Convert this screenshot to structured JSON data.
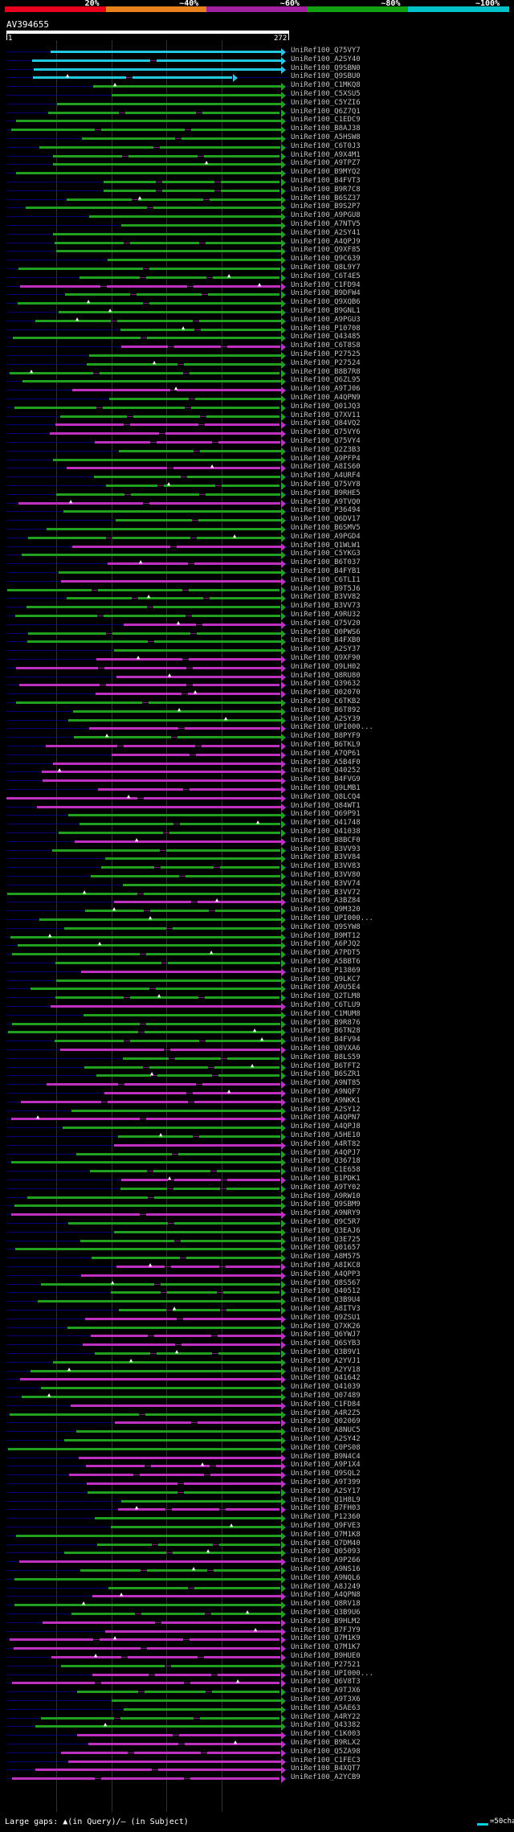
{
  "scale": {
    "labels": [
      "20%",
      "~40%",
      "~60%",
      "~80%",
      "~100%"
    ],
    "colors": [
      "#e8001c",
      "#e8801c",
      "#a020a0",
      "#10a010",
      "#00c0c8"
    ]
  },
  "query": {
    "name": "AV394655",
    "start": "1",
    "end": "272"
  },
  "colors": {
    "cyan": "#22c8e0",
    "green": "#1fa01f",
    "magenta": "#c030c0",
    "gap": "#7a1a7a",
    "guide": "#00007a"
  },
  "hits": [
    {
      "name": "UniRef100_Q75VY7",
      "color": "cyan"
    },
    {
      "name": "UniRef100_A2SY40",
      "color": "cyan"
    },
    {
      "name": "UniRef100_Q9SBN0",
      "color": "cyan"
    },
    {
      "name": "UniRef100_Q9SBU0",
      "color": "cyan"
    },
    {
      "name": "UniRef100_C1MKQ8",
      "color": "green"
    },
    {
      "name": "UniRef100_C5XSU5",
      "color": "green"
    },
    {
      "name": "UniRef100_C5YZI6",
      "color": "green"
    },
    {
      "name": "UniRef100_Q6Z7Q1",
      "color": "green"
    },
    {
      "name": "UniRef100_C1EDC9",
      "color": "green"
    },
    {
      "name": "UniRef100_B8AJ38",
      "color": "green"
    },
    {
      "name": "UniRef100_A5HSW8",
      "color": "green"
    },
    {
      "name": "UniRef100_C6T0J3",
      "color": "green"
    },
    {
      "name": "UniRef100_A9X4M1",
      "color": "green"
    },
    {
      "name": "UniRef100_A9TPZ7",
      "color": "green"
    },
    {
      "name": "UniRef100_B9MYQ2",
      "color": "green"
    },
    {
      "name": "UniRef100_B4FVT3",
      "color": "green"
    },
    {
      "name": "UniRef100_B9R7C8",
      "color": "green"
    },
    {
      "name": "UniRef100_B6SZ37",
      "color": "green"
    },
    {
      "name": "UniRef100_B9S2P7",
      "color": "green"
    },
    {
      "name": "UniRef100_A9PGU8",
      "color": "green"
    },
    {
      "name": "UniRef100_A7NTV5",
      "color": "green"
    },
    {
      "name": "UniRef100_A2SY41",
      "color": "green"
    },
    {
      "name": "UniRef100_A4QPJ9",
      "color": "green"
    },
    {
      "name": "UniRef100_Q9XF85",
      "color": "green"
    },
    {
      "name": "UniRef100_Q9C639",
      "color": "green"
    },
    {
      "name": "UniRef100_Q8L9Y7",
      "color": "green"
    },
    {
      "name": "UniRef100_C6T4E5",
      "color": "green"
    },
    {
      "name": "UniRef100_C1FD94",
      "color": "magenta"
    },
    {
      "name": "UniRef100_B9DFW4",
      "color": "green"
    },
    {
      "name": "UniRef100_Q9XQB6",
      "color": "green"
    },
    {
      "name": "UniRef100_B9GNL1",
      "color": "green"
    },
    {
      "name": "UniRef100_A9PGU3",
      "color": "green"
    },
    {
      "name": "UniRef100_P10708",
      "color": "green"
    },
    {
      "name": "UniRef100_Q43485",
      "color": "green"
    },
    {
      "name": "UniRef100_C6T8S8",
      "color": "magenta"
    },
    {
      "name": "UniRef100_P27525",
      "color": "green"
    },
    {
      "name": "UniRef100_P27524",
      "color": "green"
    },
    {
      "name": "UniRef100_B8B7R8",
      "color": "green"
    },
    {
      "name": "UniRef100_Q6ZL95",
      "color": "green"
    },
    {
      "name": "UniRef100_A9TJ06",
      "color": "magenta"
    },
    {
      "name": "UniRef100_A4QPN9",
      "color": "green"
    },
    {
      "name": "UniRef100_Q01JQ3",
      "color": "green"
    },
    {
      "name": "UniRef100_Q7XV11",
      "color": "green"
    },
    {
      "name": "UniRef100_Q84VQ2",
      "color": "magenta"
    },
    {
      "name": "UniRef100_Q75VY6",
      "color": "magenta"
    },
    {
      "name": "UniRef100_Q75VY4",
      "color": "magenta"
    },
    {
      "name": "UniRef100_Q2Z3B3",
      "color": "green"
    },
    {
      "name": "UniRef100_A9PFP4",
      "color": "green"
    },
    {
      "name": "UniRef100_A8IS60",
      "color": "magenta"
    },
    {
      "name": "UniRef100_A4URF4",
      "color": "green"
    },
    {
      "name": "UniRef100_Q75VY8",
      "color": "green"
    },
    {
      "name": "UniRef100_B9RHE5",
      "color": "green"
    },
    {
      "name": "UniRef100_A9TVQ0",
      "color": "magenta"
    },
    {
      "name": "UniRef100_P36494",
      "color": "green"
    },
    {
      "name": "UniRef100_Q6DV17",
      "color": "green"
    },
    {
      "name": "UniRef100_B6SMV5",
      "color": "green"
    },
    {
      "name": "UniRef100_A9PGD4",
      "color": "green"
    },
    {
      "name": "UniRef100_Q1WLW1",
      "color": "magenta"
    },
    {
      "name": "UniRef100_C5YKG3",
      "color": "green"
    },
    {
      "name": "UniRef100_B6T037",
      "color": "magenta"
    },
    {
      "name": "UniRef100_B4FYB1",
      "color": "green"
    },
    {
      "name": "UniRef100_C6TLI1",
      "color": "magenta"
    },
    {
      "name": "UniRef100_B9T5J6",
      "color": "green"
    },
    {
      "name": "UniRef100_B3VV82",
      "color": "green"
    },
    {
      "name": "UniRef100_B3VV73",
      "color": "green"
    },
    {
      "name": "UniRef100_A9RU32",
      "color": "green"
    },
    {
      "name": "UniRef100_Q75V20",
      "color": "magenta"
    },
    {
      "name": "UniRef100_Q0PWS6",
      "color": "green"
    },
    {
      "name": "UniRef100_B4FXB0",
      "color": "green"
    },
    {
      "name": "UniRef100_A2SY37",
      "color": "green"
    },
    {
      "name": "UniRef100_Q9XF90",
      "color": "magenta"
    },
    {
      "name": "UniRef100_Q9LH02",
      "color": "magenta"
    },
    {
      "name": "UniRef100_Q8RU80",
      "color": "magenta"
    },
    {
      "name": "UniRef100_Q39632",
      "color": "magenta"
    },
    {
      "name": "UniRef100_Q02070",
      "color": "magenta"
    },
    {
      "name": "UniRef100_C6TKB2",
      "color": "green"
    },
    {
      "name": "UniRef100_B6T892",
      "color": "green"
    },
    {
      "name": "UniRef100_A2SY39",
      "color": "green"
    },
    {
      "name": "UniRef100_UPI000...",
      "color": "magenta"
    },
    {
      "name": "UniRef100_B8PYF9",
      "color": "green"
    },
    {
      "name": "UniRef100_B6TKL9",
      "color": "magenta"
    },
    {
      "name": "UniRef100_A7QP61",
      "color": "magenta"
    },
    {
      "name": "UniRef100_A5B4F0",
      "color": "magenta"
    },
    {
      "name": "UniRef100_Q40252",
      "color": "magenta"
    },
    {
      "name": "UniRef100_B4FVG9",
      "color": "magenta"
    },
    {
      "name": "UniRef100_Q9LMB1",
      "color": "magenta"
    },
    {
      "name": "UniRef100_Q8LCQ4",
      "color": "magenta"
    },
    {
      "name": "UniRef100_Q84WT1",
      "color": "magenta"
    },
    {
      "name": "UniRef100_Q69P91",
      "color": "green"
    },
    {
      "name": "UniRef100_Q41748",
      "color": "green"
    },
    {
      "name": "UniRef100_Q41038",
      "color": "green"
    },
    {
      "name": "UniRef100_B8BCF0",
      "color": "magenta"
    },
    {
      "name": "UniRef100_B3VV93",
      "color": "green"
    },
    {
      "name": "UniRef100_B3VV84",
      "color": "green"
    },
    {
      "name": "UniRef100_B3VV83",
      "color": "green"
    },
    {
      "name": "UniRef100_B3VV80",
      "color": "green"
    },
    {
      "name": "UniRef100_B3VV74",
      "color": "green"
    },
    {
      "name": "UniRef100_B3VV72",
      "color": "green"
    },
    {
      "name": "UniRef100_A3BZ84",
      "color": "magenta"
    },
    {
      "name": "UniRef100_Q9M320",
      "color": "green"
    },
    {
      "name": "UniRef100_UPI000...",
      "color": "green"
    },
    {
      "name": "UniRef100_Q9SYW8",
      "color": "green"
    },
    {
      "name": "UniRef100_B9MT12",
      "color": "green"
    },
    {
      "name": "UniRef100_A6PJQ2",
      "color": "green"
    },
    {
      "name": "UniRef100_A7PDT5",
      "color": "green"
    },
    {
      "name": "UniRef100_A5BBT6",
      "color": "green"
    },
    {
      "name": "UniRef100_P13869",
      "color": "magenta"
    },
    {
      "name": "UniRef100_Q9LKC7",
      "color": "green"
    },
    {
      "name": "UniRef100_A9U5E4",
      "color": "green"
    },
    {
      "name": "UniRef100_Q2TLM8",
      "color": "green"
    },
    {
      "name": "UniRef100_C6TLU9",
      "color": "magenta"
    },
    {
      "name": "UniRef100_C1MUM8",
      "color": "green"
    },
    {
      "name": "UniRef100_B9R876",
      "color": "green"
    },
    {
      "name": "UniRef100_B6TN28",
      "color": "green"
    },
    {
      "name": "UniRef100_B4FV94",
      "color": "green"
    },
    {
      "name": "UniRef100_Q8VXA6",
      "color": "magenta"
    },
    {
      "name": "UniRef100_B8LS59",
      "color": "green"
    },
    {
      "name": "UniRef100_B6TFT2",
      "color": "green"
    },
    {
      "name": "UniRef100_B6SZR1",
      "color": "green"
    },
    {
      "name": "UniRef100_A9NT85",
      "color": "magenta"
    },
    {
      "name": "UniRef100_A9NQF7",
      "color": "magenta"
    },
    {
      "name": "UniRef100_A9NKK1",
      "color": "magenta"
    },
    {
      "name": "UniRef100_A2SY12",
      "color": "green"
    },
    {
      "name": "UniRef100_A4QPN7",
      "color": "magenta"
    },
    {
      "name": "UniRef100_A4QPJ8",
      "color": "green"
    },
    {
      "name": "UniRef100_A5HE10",
      "color": "green"
    },
    {
      "name": "UniRef100_A4RT82",
      "color": "magenta"
    },
    {
      "name": "UniRef100_A4QPJ7",
      "color": "green"
    },
    {
      "name": "UniRef100_Q36718",
      "color": "green"
    },
    {
      "name": "UniRef100_C1E658",
      "color": "green"
    },
    {
      "name": "UniRef100_B1PDK1",
      "color": "magenta"
    },
    {
      "name": "UniRef100_A9TY02",
      "color": "green"
    },
    {
      "name": "UniRef100_A9RW10",
      "color": "green"
    },
    {
      "name": "UniRef100_Q9SBM9",
      "color": "green"
    },
    {
      "name": "UniRef100_A9NRY9",
      "color": "magenta"
    },
    {
      "name": "UniRef100_Q9C5R7",
      "color": "green"
    },
    {
      "name": "UniRef100_Q3EAJ6",
      "color": "green"
    },
    {
      "name": "UniRef100_Q3E725",
      "color": "green"
    },
    {
      "name": "UniRef100_Q01657",
      "color": "green"
    },
    {
      "name": "UniRef100_A8M575",
      "color": "green"
    },
    {
      "name": "UniRef100_A8IKC8",
      "color": "magenta"
    },
    {
      "name": "UniRef100_A4QPP3",
      "color": "magenta"
    },
    {
      "name": "UniRef100_Q8S567",
      "color": "green"
    },
    {
      "name": "UniRef100_Q40512",
      "color": "green"
    },
    {
      "name": "UniRef100_Q3B9U4",
      "color": "green"
    },
    {
      "name": "UniRef100_A8ITV3",
      "color": "green"
    },
    {
      "name": "UniRef100_Q9ZSU1",
      "color": "magenta"
    },
    {
      "name": "UniRef100_Q7XK26",
      "color": "green"
    },
    {
      "name": "UniRef100_Q6YWJ7",
      "color": "magenta"
    },
    {
      "name": "UniRef100_Q6SYB3",
      "color": "magenta"
    },
    {
      "name": "UniRef100_Q3B9V1",
      "color": "green"
    },
    {
      "name": "UniRef100_A2YVJ1",
      "color": "green"
    },
    {
      "name": "UniRef100_A2YV18",
      "color": "green"
    },
    {
      "name": "UniRef100_Q41642",
      "color": "magenta"
    },
    {
      "name": "UniRef100_Q41039",
      "color": "green"
    },
    {
      "name": "UniRef100_Q07489",
      "color": "green"
    },
    {
      "name": "UniRef100_C1FD84",
      "color": "magenta"
    },
    {
      "name": "UniRef100_A4R2Z5",
      "color": "green"
    },
    {
      "name": "UniRef100_Q02069",
      "color": "magenta"
    },
    {
      "name": "UniRef100_A8NUC5",
      "color": "green"
    },
    {
      "name": "UniRef100_A2SY42",
      "color": "green"
    },
    {
      "name": "UniRef100_C0PS08",
      "color": "green"
    },
    {
      "name": "UniRef100_B9N4C4",
      "color": "magenta"
    },
    {
      "name": "UniRef100_A9P1X4",
      "color": "magenta"
    },
    {
      "name": "UniRef100_Q9SQL2",
      "color": "magenta"
    },
    {
      "name": "UniRef100_A9T399",
      "color": "magenta"
    },
    {
      "name": "UniRef100_A2SY17",
      "color": "green"
    },
    {
      "name": "UniRef100_Q1H8L9",
      "color": "green"
    },
    {
      "name": "UniRef100_B7FH03",
      "color": "magenta"
    },
    {
      "name": "UniRef100_P12360",
      "color": "green"
    },
    {
      "name": "UniRef100_Q9FVE3",
      "color": "green"
    },
    {
      "name": "UniRef100_Q7M1K8",
      "color": "green"
    },
    {
      "name": "UniRef100_Q7DM40",
      "color": "green"
    },
    {
      "name": "UniRef100_Q05093",
      "color": "green"
    },
    {
      "name": "UniRef100_A9P266",
      "color": "magenta"
    },
    {
      "name": "UniRef100_A9NS16",
      "color": "green"
    },
    {
      "name": "UniRef100_A9NQL6",
      "color": "green"
    },
    {
      "name": "UniRef100_A8J249",
      "color": "green"
    },
    {
      "name": "UniRef100_A4QPN8",
      "color": "magenta"
    },
    {
      "name": "UniRef100_Q8RV18",
      "color": "green"
    },
    {
      "name": "UniRef100_Q3B9U6",
      "color": "green"
    },
    {
      "name": "UniRef100_B9HLM2",
      "color": "magenta"
    },
    {
      "name": "UniRef100_B7FJY9",
      "color": "magenta"
    },
    {
      "name": "UniRef100_Q7M1K9",
      "color": "magenta"
    },
    {
      "name": "UniRef100_Q7M1K7",
      "color": "magenta"
    },
    {
      "name": "UniRef100_B9HUE0",
      "color": "magenta"
    },
    {
      "name": "UniRef100_P27521",
      "color": "green"
    },
    {
      "name": "UniRef100_UPI000...",
      "color": "magenta"
    },
    {
      "name": "UniRef100_Q6V8T3",
      "color": "magenta"
    },
    {
      "name": "UniRef100_A9TJX6",
      "color": "green"
    },
    {
      "name": "UniRef100_A9T3X6",
      "color": "green"
    },
    {
      "name": "UniRef100_A5AE63",
      "color": "green"
    },
    {
      "name": "UniRef100_A4RY22",
      "color": "green"
    },
    {
      "name": "UniRef100_Q43382",
      "color": "green"
    },
    {
      "name": "UniRef100_C1K003",
      "color": "magenta"
    },
    {
      "name": "UniRef100_B9RLX2",
      "color": "magenta"
    },
    {
      "name": "UniRef100_Q5ZA98",
      "color": "magenta"
    },
    {
      "name": "UniRef100_C1FEC3",
      "color": "magenta"
    },
    {
      "name": "UniRef100_B4XQT7",
      "color": "magenta"
    },
    {
      "name": "UniRef100_A2YCB9",
      "color": "magenta"
    }
  ],
  "footer": {
    "legend": "Large gaps: ▲(in Query)/– (in Subject)",
    "key": "=50char."
  }
}
